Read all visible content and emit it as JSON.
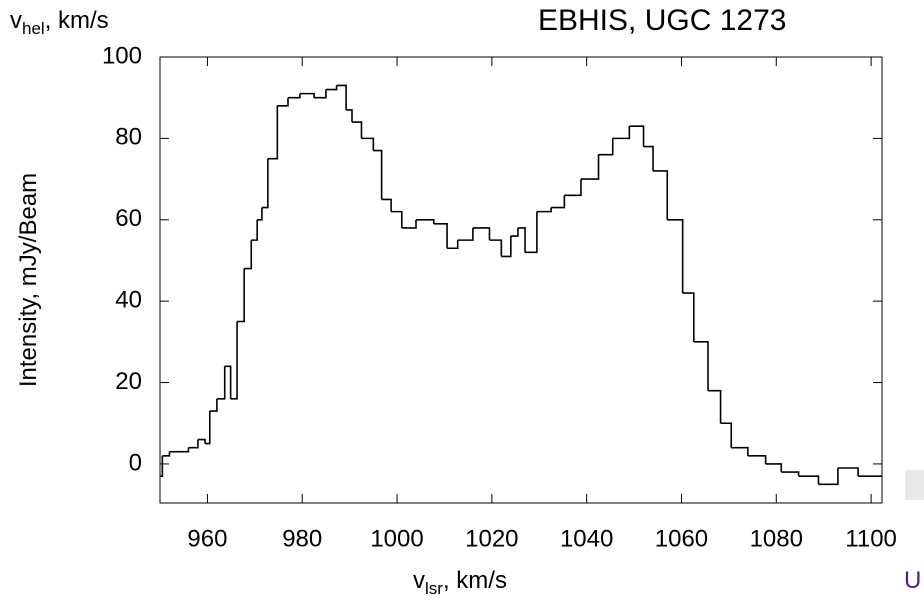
{
  "chart_data": {
    "type": "step",
    "title": "EBHIS, UGC 1273",
    "y_unit": {
      "main": "v",
      "sub": "hel",
      "rest": ", km/s"
    },
    "x_label": {
      "main": "v",
      "sub": "lsr",
      "rest": ", km/s"
    },
    "y_label": "Intensity, mJy/Beam",
    "color": "#000000",
    "x": [
      950,
      951,
      953,
      955,
      957,
      959,
      960,
      961,
      963,
      964.3,
      965.5,
      967,
      968.5,
      970,
      971,
      972,
      973.5,
      976,
      978,
      981,
      984,
      986,
      988.5,
      990,
      991,
      994,
      996,
      997.5,
      1000,
      1002,
      1006,
      1009.5,
      1011.6,
      1014,
      1018,
      1021,
      1023,
      1025,
      1026,
      1028,
      1031,
      1034,
      1036.6,
      1041,
      1044,
      1047,
      1051,
      1053,
      1055,
      1059,
      1061.5,
      1063.7,
      1067.5,
      1069,
      1072,
      1076,
      1079.5,
      1082.6,
      1086.8,
      1091,
      1095,
      1099.5
    ],
    "values": [
      -3,
      2,
      3,
      3,
      4,
      6,
      5,
      13,
      16,
      24,
      16,
      35,
      48,
      55,
      60,
      63,
      75,
      88,
      90,
      91,
      90,
      92,
      93,
      87,
      84,
      80,
      77,
      65,
      62,
      58,
      60,
      59,
      53,
      55,
      58,
      55,
      51,
      56,
      58,
      52,
      62,
      63,
      66,
      70,
      76,
      80,
      83,
      78,
      72,
      60,
      42,
      30,
      18,
      10,
      4,
      2,
      0,
      -2,
      -3,
      -5,
      -1,
      -3
    ],
    "xlim": [
      950,
      1102.3
    ],
    "ylim": [
      -9.6,
      100
    ],
    "xticks": [
      960,
      980,
      1000,
      1020,
      1040,
      1060,
      1080,
      1100
    ],
    "yticks": [
      0,
      20,
      40,
      60,
      80,
      100
    ]
  },
  "link": "U"
}
